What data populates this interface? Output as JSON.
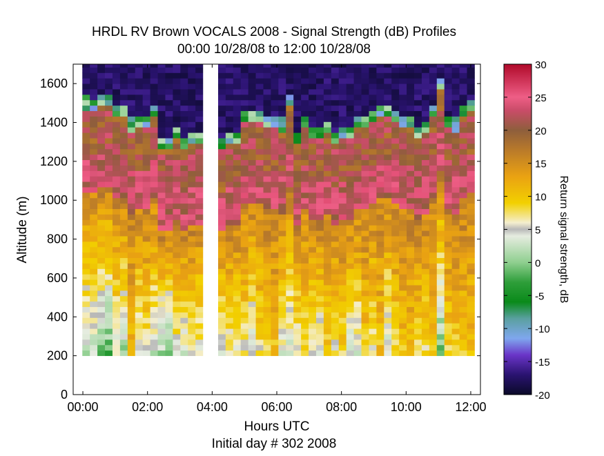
{
  "chart_data": {
    "type": "heatmap",
    "title": "HRDL RV Brown VOCALS 2008 - Signal Strength (dB) Profiles",
    "subtitle": "00:00 10/28/08 to 12:00 10/28/08",
    "xlabel": "Hours UTC",
    "xlabel2": "Initial day # 302  2008",
    "ylabel": "Altitude (m)",
    "colorbar_label": "Return signal strength, dB",
    "xlim": [
      -0.3,
      12.3
    ],
    "ylim": [
      0,
      1700
    ],
    "clim": [
      -20,
      30
    ],
    "x_ticks": [
      0,
      2,
      4,
      6,
      8,
      10,
      12
    ],
    "x_tick_labels": [
      "00:00",
      "02:00",
      "04:00",
      "06:00",
      "08:00",
      "10:00",
      "12:00"
    ],
    "y_ticks": [
      0,
      200,
      400,
      600,
      800,
      1000,
      1200,
      1400,
      1600
    ],
    "y_tick_labels": [
      "0",
      "200",
      "400",
      "600",
      "800",
      "1000",
      "1200",
      "1400",
      "1600"
    ],
    "colorbar_ticks": [
      30,
      25,
      20,
      15,
      10,
      5,
      0,
      -5,
      -10,
      -15,
      -20
    ],
    "colorbar_tick_labels": [
      "30",
      "25",
      "20",
      "15",
      "10",
      "5",
      "0",
      "-5",
      "-10",
      "-15",
      "-20"
    ],
    "colormap_stops": [
      [
        -20,
        "#0a0a28"
      ],
      [
        -17,
        "#2a1370"
      ],
      [
        -14,
        "#6a35c8"
      ],
      [
        -11.5,
        "#7fa7ee"
      ],
      [
        -8.5,
        "#5aa0a0"
      ],
      [
        -6,
        "#0a8a1a"
      ],
      [
        -3,
        "#2e9e3a"
      ],
      [
        0,
        "#8fcf8f"
      ],
      [
        4,
        "#e6ece0"
      ],
      [
        5,
        "#b8b8b8"
      ],
      [
        6,
        "#f4eecf"
      ],
      [
        9,
        "#f2d000"
      ],
      [
        13,
        "#eaa212"
      ],
      [
        17,
        "#b97a2a"
      ],
      [
        20,
        "#8e5e3c"
      ],
      [
        23,
        "#c94c68"
      ],
      [
        25,
        "#ee5e86"
      ],
      [
        30,
        "#b00a2a"
      ]
    ],
    "profile_times_h": [
      0.1,
      0.3333,
      0.5667,
      0.8,
      1.0333,
      1.2667,
      1.5,
      1.7333,
      1.9667,
      2.2,
      2.4333,
      2.6667,
      2.9,
      3.1333,
      3.3667,
      3.6,
      4.3,
      4.5333,
      4.7667,
      5.0,
      5.2333,
      5.4667,
      5.7,
      5.9333,
      6.1667,
      6.4,
      6.6333,
      6.8667,
      7.1,
      7.3333,
      7.5667,
      7.8,
      8.0333,
      8.2667,
      8.5,
      8.7333,
      8.9667,
      9.2,
      9.4333,
      9.6667,
      9.9,
      10.1333,
      10.3667,
      10.6,
      10.8333,
      11.0667,
      11.3,
      11.5333,
      11.7667,
      12.0
    ],
    "profile_width_h": 0.2333,
    "signal_top_m": 1700,
    "signal_bottom_m": 200,
    "data_gaps_h": [
      [
        3.72,
        4.18
      ]
    ],
    "cloud_top_m": [
      1470,
      1460,
      1480,
      1480,
      1430,
      1420,
      1360,
      1370,
      1380,
      1430,
      1250,
      1260,
      1320,
      1260,
      1290,
      1300,
      1270,
      1300,
      1300,
      1390,
      1390,
      1390,
      1370,
      1380,
      1360,
      1480,
      1300,
      1380,
      1320,
      1310,
      1350,
      1300,
      1320,
      1320,
      1380,
      1380,
      1410,
      1420,
      1430,
      1400,
      1380,
      1380,
      1310,
      1350,
      1440,
      1560,
      1380,
      1360,
      1420,
      1460
    ],
    "surface_min_db": [
      1.5,
      2,
      -0.5,
      -2,
      4,
      1,
      11,
      4,
      6,
      3,
      1,
      -0.5,
      5,
      4,
      5,
      5,
      4,
      5,
      5,
      6,
      3,
      7,
      9,
      10,
      4,
      4,
      5,
      7,
      6,
      4,
      9,
      6,
      8,
      3,
      4,
      9,
      6,
      10,
      3,
      8,
      10,
      10,
      8,
      7,
      10,
      -1,
      8,
      9,
      10,
      10
    ]
  },
  "colors": {
    "gap": "#ffffff",
    "axis": "#000000",
    "background": "#ffffff"
  }
}
